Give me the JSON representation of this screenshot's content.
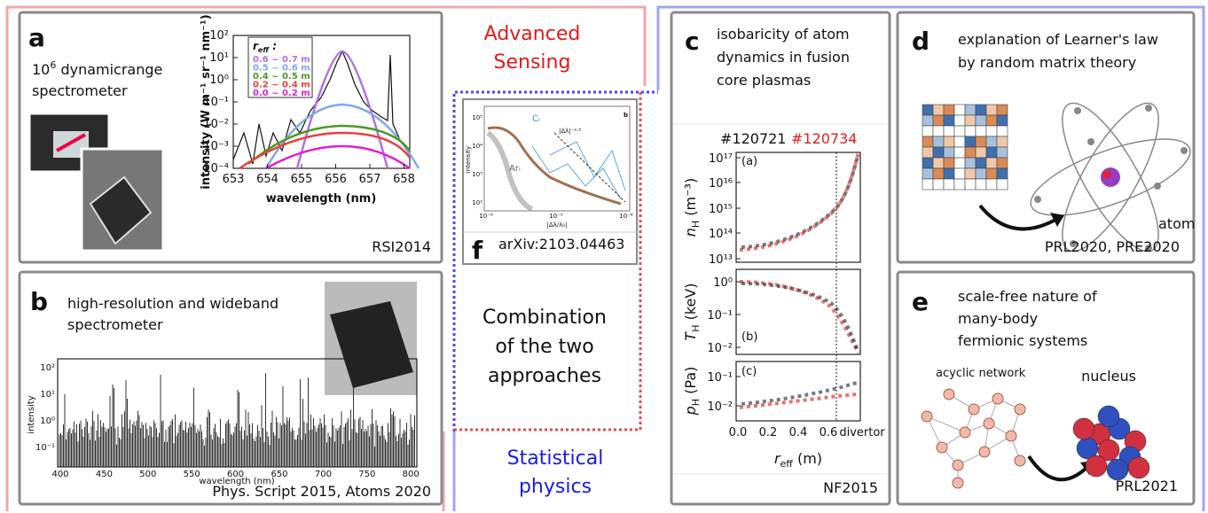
{
  "center": {
    "advanced": [
      "Advanced",
      "Sensing"
    ],
    "combination": [
      "Combination",
      "of the two",
      "approaches"
    ],
    "statistical": [
      "Statistical",
      "physics"
    ]
  },
  "panel_a": {
    "label": "a",
    "title_base": "10",
    "title_sup": "6",
    "title_rest": " dynamicrange",
    "title_line2": "spectrometer",
    "xticks": [
      "653",
      "654",
      "655",
      "656",
      "657",
      "658"
    ],
    "yticks": [
      "10²",
      "10¹",
      "10⁰",
      "10⁻¹",
      "10⁻²",
      "10⁻³",
      "10⁻⁴"
    ],
    "ylabel": "intensity (W m⁻¹ sr⁻¹ nm⁻¹)",
    "xlabel": "wavelength (nm)",
    "legend_title": {
      "main": "r",
      "sub": "eff",
      "suffix": " :"
    },
    "legend": [
      "0.6 ~ 0.7 m",
      "0.5 ~ 0.6 m",
      "0.4 ~ 0.5 m",
      "0.2 ~ 0.4 m",
      "0.0 ~ 0.2 m"
    ],
    "reference": "RSI2014"
  },
  "panel_b": {
    "label": "b",
    "title": [
      "high-resolution and wideband",
      "spectrometer"
    ],
    "xticks": [
      "400",
      "450",
      "500",
      "550",
      "600",
      "650",
      "700",
      "750",
      "800"
    ],
    "yticks": [
      "10²",
      "10¹",
      "10⁰",
      "10⁻¹"
    ],
    "ylabel": "intensity",
    "xlabel": "wavelength (nm)",
    "reference": "Phys. Script 2015, Atoms 2020"
  },
  "panel_f": {
    "label": "f",
    "yticks": [
      "10⁵",
      "10⁴",
      "10³",
      "10²"
    ],
    "xticks": [
      "10⁻⁶",
      "10⁻⁵",
      "10⁻⁴"
    ],
    "ylabel": "intensity",
    "xlabel": "|Δλ/λ₀|",
    "line_c": "Cᵢ",
    "line_ar": "Arᵢ",
    "inset_label": "b",
    "slope": "|Δλ|⁻²·⁵",
    "reference": "arXiv:2103.04463"
  },
  "panel_c": {
    "label": "c",
    "title": [
      "isobaricity of atom",
      "dynamics in fusion",
      "core plasmas"
    ],
    "shot_1": "#120721",
    "shot_2": "#120734",
    "sub_a": {
      "tag": "(a)",
      "yticks": [
        "10¹⁷",
        "10¹⁶",
        "10¹⁵",
        "10¹⁴",
        "10¹³"
      ],
      "ylabel_main": "n",
      "ylabel_sub": "H",
      "ylabel_unit": " (m⁻³)"
    },
    "sub_b": {
      "tag": "(b)",
      "yticks": [
        "10⁰",
        "10⁻¹",
        "10⁻²"
      ],
      "ylabel_main": "T",
      "ylabel_sub": "H",
      "ylabel_unit": " (keV)"
    },
    "sub_c": {
      "tag": "(c)",
      "yticks": [
        "10⁻¹",
        "10⁻²"
      ],
      "ylabel_main": "p",
      "ylabel_sub": "H",
      "ylabel_unit": " (Pa)"
    },
    "xticks": [
      "0.0",
      "0.2",
      "0.4",
      "0.6"
    ],
    "divertor": "divertor",
    "xlabel_main": "r",
    "xlabel_sub": "eff",
    "xlabel_unit": " (m)",
    "reference": "NF2015"
  },
  "panel_d": {
    "label": "d",
    "title": [
      "explanation of Learner's law",
      "by random matrix theory"
    ],
    "atom": "atom",
    "reference": "PRL2020, PRE2020"
  },
  "panel_e": {
    "label": "e",
    "title": [
      "scale-free nature of",
      "many-body",
      "fermionic systems"
    ],
    "network": "acyclic network",
    "nucleus": "nucleus",
    "reference": "PRL2021"
  }
}
